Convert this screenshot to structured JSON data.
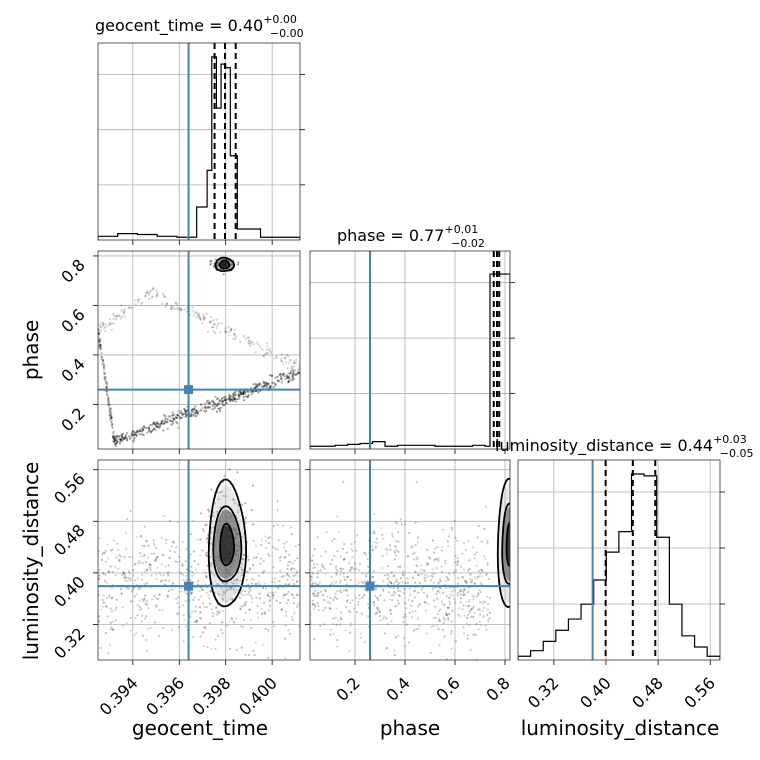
{
  "colors": {
    "truth": "#4682b4",
    "hist": "#000000",
    "grid": "#b0b0b0",
    "density_dark": "#000000",
    "density_mid": "#555555",
    "density_light": "#bbbbbb"
  },
  "titles": [
    {
      "param": "geocent_time",
      "eq": "geocent_time = 0.40",
      "sup": "+0.00",
      "sub": "−0.00"
    },
    {
      "param": "phase",
      "eq": "phase = 0.77",
      "sup": "+0.01",
      "sub": "−0.02"
    },
    {
      "param": "luminosity_distance",
      "eq": "luminosity_distance = 0.44",
      "sup": "+0.03",
      "sub": "−0.05"
    }
  ],
  "axis_labels": {
    "geocent_time": "geocent_time",
    "phase": "phase",
    "luminosity_distance": "luminosity_distance"
  },
  "chart_data": {
    "type": "corner",
    "parameters": [
      "geocent_time",
      "phase",
      "luminosity_distance"
    ],
    "truths": {
      "geocent_time": 0.3964,
      "phase": 0.26,
      "luminosity_distance": 0.3795
    },
    "ranges": {
      "geocent_time": [
        0.3925,
        0.4012
      ],
      "phase": [
        0.02,
        0.82
      ],
      "luminosity_distance": [
        0.265,
        0.575
      ]
    },
    "ticks": {
      "geocent_time": {
        "values": [
          0.394,
          0.396,
          0.398,
          0.4
        ],
        "labels": [
          "0.394",
          "0.396",
          "0.398",
          "0.400"
        ]
      },
      "phase": {
        "values": [
          0.2,
          0.4,
          0.6,
          0.8
        ],
        "labels": [
          "0.2",
          "0.4",
          "0.6",
          "0.8"
        ]
      },
      "luminosity_distance": {
        "values": [
          0.32,
          0.4,
          0.48,
          0.56
        ],
        "labels": [
          "0.32",
          "0.40",
          "0.48",
          "0.56"
        ]
      }
    },
    "grid": true,
    "histograms": {
      "geocent_time": {
        "edges": [
          0.3925,
          0.39335,
          0.3942,
          0.39505,
          0.3959,
          0.39675,
          0.3972,
          0.3974,
          0.3976,
          0.3978,
          0.398,
          0.3982,
          0.3985,
          0.3995,
          0.4012
        ],
        "counts": [
          0.02,
          0.035,
          0.03,
          0.02,
          0.015,
          0.18,
          0.38,
          1.0,
          0.72,
          0.96,
          0.94,
          0.46,
          0.06,
          0.015
        ],
        "quantiles": [
          0.39752,
          0.39797,
          0.39843
        ]
      },
      "phase": {
        "edges": [
          0.02,
          0.07,
          0.12,
          0.17,
          0.22,
          0.27,
          0.32,
          0.37,
          0.42,
          0.47,
          0.52,
          0.57,
          0.62,
          0.67,
          0.72,
          0.74,
          0.82
        ],
        "counts": [
          0.015,
          0.015,
          0.02,
          0.025,
          0.03,
          0.04,
          0.015,
          0.02,
          0.02,
          0.02,
          0.015,
          0.015,
          0.015,
          0.02,
          0.015,
          0.95
        ],
        "quantiles": [
          0.755,
          0.768,
          0.777
        ]
      },
      "luminosity_distance": {
        "edges": [
          0.265,
          0.2843,
          0.3037,
          0.323,
          0.3424,
          0.3618,
          0.3811,
          0.4005,
          0.4198,
          0.4392,
          0.4585,
          0.4779,
          0.4973,
          0.5166,
          0.536,
          0.5553,
          0.575
        ],
        "counts": [
          0.02,
          0.05,
          0.1,
          0.16,
          0.22,
          0.3,
          0.43,
          0.58,
          0.69,
          1.0,
          0.99,
          0.66,
          0.3,
          0.13,
          0.07,
          0.02
        ],
        "quantiles": [
          0.3995,
          0.4412,
          0.4757
        ]
      }
    },
    "scatter_shape": {
      "geocent_time_vs_phase": "folded tracks: faint sample band descending from phase 0.5 at t=0.3925 to phase 0.05 near t=0.3932 and continuing along a rising line from phase 0.05 to 0.33 across the range; a second faint band from phase 0.5 rising to 0.65 near t=0.3948 then falling to 0.35 at t=0.4012; dense blob centered near t=0.39795, phase 0.76",
      "geocent_time_vs_luminosity_distance": "broad cloud over full time range, distance 0.27–0.56; dense core centered near t=0.39805, distance 0.44",
      "phase_vs_luminosity_distance": "broad cloud over phase 0.02–0.72, distance 0.27–0.56; dense core at phase ~0.8, distance 0.44"
    },
    "contours": {
      "geocent_time_vs_phase": {
        "center": [
          0.39795,
          0.765
        ],
        "levels": [
          [
            0.0004,
            0.027
          ],
          [
            0.0002,
            0.017
          ]
        ]
      },
      "geocent_time_vs_luminosity_distance": {
        "center": [
          0.39805,
          0.443
        ],
        "levels": [
          [
            0.0008,
            0.098
          ],
          [
            0.0006,
            0.058
          ],
          [
            0.0003,
            0.032
          ]
        ]
      },
      "phase_vs_luminosity_distance": {
        "center": [
          0.82,
          0.443
        ],
        "levels": [
          [
            0.05,
            0.099
          ],
          [
            0.032,
            0.062
          ],
          [
            0.014,
            0.033
          ]
        ]
      }
    }
  }
}
